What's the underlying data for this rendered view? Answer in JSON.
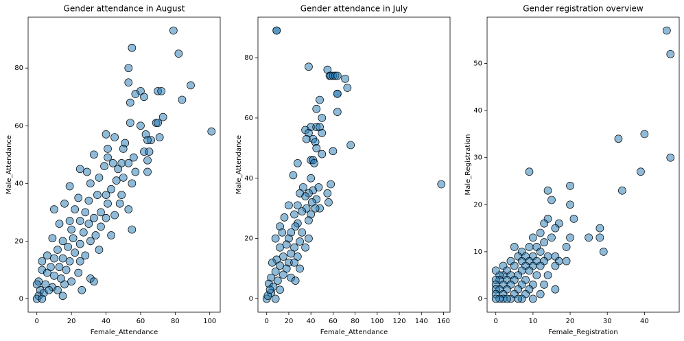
{
  "chart_data": [
    {
      "type": "scatter",
      "title": "Gender attendance in August",
      "x_label": "Female_Attendance",
      "y_label": "Male_Attendance",
      "color": "#1f77b4",
      "x": [
        79,
        82,
        55,
        53,
        89,
        53,
        70,
        72,
        60,
        57,
        62,
        84,
        54,
        73,
        69,
        70,
        60,
        54,
        101,
        63,
        40,
        45,
        66,
        71,
        64,
        51,
        50,
        41,
        62,
        65,
        56,
        64,
        41,
        33,
        44,
        49,
        53,
        39,
        47,
        64,
        57,
        25,
        29,
        50,
        36,
        46,
        55,
        19,
        31,
        43,
        40,
        35,
        49,
        24,
        30,
        41,
        48,
        16,
        22,
        10,
        28,
        37,
        53,
        45,
        33,
        40,
        55,
        19,
        25,
        30,
        37,
        13,
        43,
        20,
        27,
        34,
        21,
        9,
        15,
        25,
        31,
        36,
        18,
        12,
        22,
        28,
        6,
        10,
        15,
        19,
        25,
        3,
        8,
        13,
        17,
        24,
        31,
        33,
        3,
        6,
        10,
        14,
        20,
        26,
        16,
        1,
        5,
        9,
        12,
        15,
        2,
        0,
        1,
        0,
        4,
        7,
        3
      ],
      "y": [
        93,
        85,
        87,
        80,
        74,
        75,
        72,
        72,
        72,
        71,
        70,
        69,
        68,
        63,
        61,
        61,
        60,
        61,
        58,
        57,
        57,
        56,
        55,
        56,
        55,
        54,
        52,
        52,
        51,
        51,
        49,
        48,
        49,
        50,
        47,
        47,
        47,
        46,
        45,
        44,
        44,
        45,
        44,
        42,
        42,
        41,
        40,
        39,
        40,
        38,
        36,
        36,
        36,
        35,
        34,
        33,
        33,
        33,
        31,
        31,
        30,
        30,
        31,
        29,
        28,
        28,
        24,
        27,
        27,
        26,
        25,
        26,
        22,
        24,
        23,
        22,
        21,
        21,
        20,
        19,
        20,
        17,
        18,
        17,
        16,
        15,
        15,
        14,
        14,
        13,
        13,
        13,
        11,
        11,
        10,
        9,
        7,
        6,
        10,
        9,
        8,
        7,
        6,
        3,
        5,
        6,
        5,
        4,
        3,
        1,
        3,
        5,
        1,
        0,
        2,
        3,
        0
      ],
      "xlim": [
        -5.05,
        106.05
      ],
      "ylim": [
        -4.65,
        97.65
      ],
      "xticks": [
        0,
        20,
        40,
        60,
        80,
        100
      ],
      "yticks": [
        0,
        20,
        40,
        60,
        80
      ]
    },
    {
      "type": "scatter",
      "title": "Gender attendance in July",
      "x_label": "Female_Attendance",
      "y_label": "Male_Attendance",
      "color": "#1f77b4",
      "x": [
        9,
        9,
        38,
        55,
        57,
        58,
        60,
        62,
        64,
        71,
        73,
        64,
        64,
        48,
        45,
        64,
        50,
        40,
        45,
        48,
        35,
        38,
        50,
        42,
        36,
        44,
        60,
        45,
        50,
        40,
        42,
        43,
        28,
        76,
        158,
        24,
        40,
        33,
        42,
        47,
        38,
        35,
        45,
        55,
        58,
        30,
        41,
        48,
        44,
        56,
        36,
        28,
        20,
        32,
        40,
        25,
        16,
        38,
        28,
        12,
        26,
        32,
        22,
        14,
        38,
        20,
        30,
        8,
        18,
        25,
        12,
        35,
        22,
        28,
        15,
        9,
        20,
        25,
        5,
        12,
        18,
        30,
        8,
        15,
        22,
        4,
        10,
        26,
        2,
        6,
        12,
        4,
        8,
        0,
        1,
        3
      ],
      "y": [
        89,
        89,
        77,
        76,
        74,
        74,
        74,
        74,
        74,
        73,
        70,
        68,
        68,
        66,
        63,
        62,
        60,
        57,
        57,
        57,
        56,
        55,
        55,
        53,
        53,
        52,
        49,
        50,
        48,
        46,
        46,
        45,
        45,
        51,
        38,
        41,
        40,
        37,
        36,
        37,
        35,
        34,
        33,
        35,
        38,
        35,
        32,
        30,
        30,
        32,
        30,
        31,
        31,
        29,
        28,
        28,
        27,
        26,
        25,
        24,
        24,
        22,
        22,
        22,
        20,
        20,
        19,
        20,
        18,
        17,
        17,
        17,
        15,
        14,
        14,
        13,
        12,
        12,
        12,
        11,
        10,
        10,
        9,
        8,
        7,
        7,
        6,
        6,
        5,
        4,
        3,
        2,
        0,
        0,
        1,
        3
      ],
      "xlim": [
        -7.9,
        165.9
      ],
      "ylim": [
        -4.45,
        93.45
      ],
      "xticks": [
        0,
        20,
        40,
        60,
        80,
        100,
        120,
        140,
        160
      ],
      "yticks": [
        0,
        20,
        40,
        60,
        80
      ]
    },
    {
      "type": "scatter",
      "title": "Gender registration overview",
      "x_label": "Female_Registration",
      "y_label": "Male_Registration",
      "color": "#1f77b4",
      "x": [
        46,
        47,
        33,
        40,
        47,
        39,
        34,
        9,
        14,
        20,
        15,
        20,
        21,
        14,
        13,
        17,
        28,
        16,
        12,
        25,
        28,
        20,
        15,
        10,
        13,
        19,
        29,
        11,
        9,
        12,
        7,
        16,
        14,
        10,
        8,
        6,
        5,
        19,
        17,
        13,
        11,
        9,
        7,
        4,
        2,
        16,
        12,
        10,
        8,
        5,
        3,
        9,
        7,
        14,
        11,
        6,
        4,
        2,
        1,
        0,
        8,
        5,
        3,
        1,
        0,
        13,
        10,
        7,
        4,
        2,
        0,
        9,
        6,
        3,
        1,
        0,
        16,
        12,
        8,
        5,
        2,
        0,
        10,
        7,
        4,
        2,
        1,
        0,
        3,
        6
      ],
      "y": [
        57,
        52,
        34,
        35,
        30,
        27,
        23,
        27,
        23,
        24,
        21,
        20,
        17,
        17,
        16,
        16,
        15,
        15,
        14,
        13,
        13,
        13,
        13,
        13,
        12,
        11,
        10,
        11,
        11,
        10,
        10,
        9,
        9,
        9,
        9,
        9,
        11,
        8,
        8,
        8,
        8,
        8,
        8,
        8,
        7,
        7,
        7,
        7,
        7,
        7,
        6,
        6,
        6,
        5,
        5,
        5,
        5,
        5,
        5,
        6,
        4,
        4,
        4,
        4,
        4,
        3,
        3,
        3,
        3,
        3,
        3,
        2,
        2,
        2,
        2,
        2,
        2,
        1,
        1,
        1,
        1,
        1,
        0,
        0,
        0,
        0,
        0,
        0,
        0,
        0
      ],
      "xlim": [
        -2.35,
        49.35
      ],
      "ylim": [
        -2.85,
        59.85
      ],
      "xticks": [
        0,
        10,
        20,
        30,
        40
      ],
      "yticks": [
        0,
        10,
        20,
        30,
        40,
        50
      ]
    }
  ]
}
